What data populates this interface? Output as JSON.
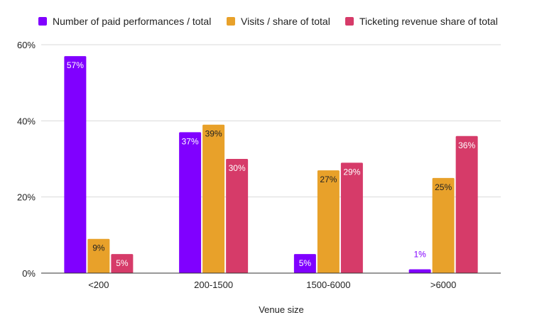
{
  "chart_data": {
    "type": "bar",
    "categories": [
      "<200",
      "200-1500",
      "1500-6000",
      ">6000"
    ],
    "series": [
      {
        "name": "Number of paid performances / total",
        "color": "#8000ff",
        "values": [
          57,
          37,
          5,
          1
        ],
        "labels": [
          "57%",
          "37%",
          "5%",
          "1%"
        ]
      },
      {
        "name": "Visits / share of total",
        "color": "#e8a12a",
        "values": [
          9,
          39,
          27,
          25
        ],
        "labels": [
          "9%",
          "39%",
          "27%",
          "25%"
        ]
      },
      {
        "name": "Ticketing revenue share of total",
        "color": "#d63b69",
        "values": [
          5,
          30,
          29,
          36
        ],
        "labels": [
          "5%",
          "30%",
          "29%",
          "36%"
        ]
      }
    ],
    "title": "",
    "xlabel": "Venue size",
    "ylabel": "",
    "ylim": [
      0,
      60
    ],
    "yticks": [
      0,
      20,
      40,
      60
    ],
    "ytick_labels": [
      "0%",
      "20%",
      "40%",
      "60%"
    ],
    "grid": true,
    "legend": "top-left"
  }
}
